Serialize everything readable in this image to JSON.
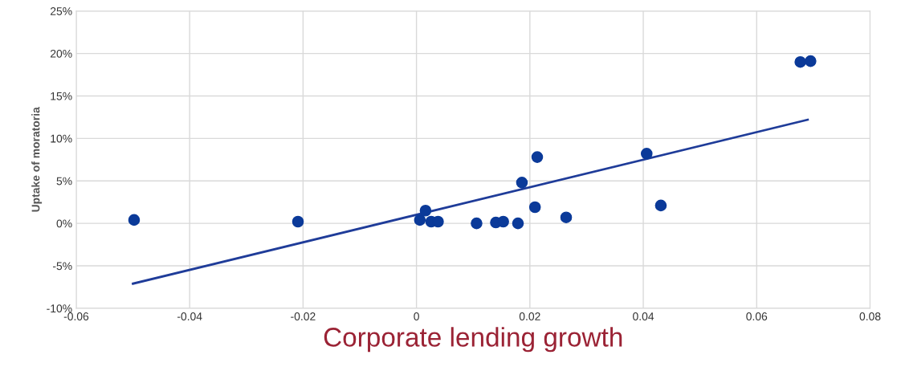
{
  "chart_data": {
    "type": "scatter",
    "xlabel": "Corporate lending growth",
    "ylabel": "Uptake of moratoria",
    "xlim": [
      -0.06,
      0.08
    ],
    "xticks": [
      -0.06,
      -0.04,
      -0.02,
      0,
      0.02,
      0.04,
      0.06,
      0.08
    ],
    "ylim": [
      -10,
      25
    ],
    "yticks": [
      {
        "value": -10,
        "label": "-10%"
      },
      {
        "value": -5,
        "label": "-5%"
      },
      {
        "value": 0,
        "label": "0%"
      },
      {
        "value": 5,
        "label": "5%"
      },
      {
        "value": 10,
        "label": "10%"
      },
      {
        "value": 15,
        "label": "15%"
      },
      {
        "value": 20,
        "label": "20%"
      },
      {
        "value": 25,
        "label": "25%"
      }
    ],
    "grid": true,
    "series": [
      {
        "marker": "circle",
        "color": "#0b3a99",
        "x": [
          -0.0498,
          -0.0209,
          0.0006,
          0.0016,
          0.0026,
          0.0038,
          0.0106,
          0.014,
          0.0153,
          0.0179,
          0.0186,
          0.0209,
          0.0213,
          0.0264,
          0.0406,
          0.0431,
          0.0677,
          0.0695
        ],
        "values": [
          0.4,
          0.2,
          0.4,
          1.5,
          0.2,
          0.2,
          0.0,
          0.1,
          0.2,
          0.0,
          4.8,
          1.9,
          7.8,
          0.7,
          8.2,
          2.1,
          19.0,
          19.1
        ]
      },
      {
        "type": "line",
        "color": "#1f3c99",
        "x": [
          -0.05,
          0.069
        ],
        "values": [
          -7.1,
          12.2
        ]
      }
    ]
  }
}
